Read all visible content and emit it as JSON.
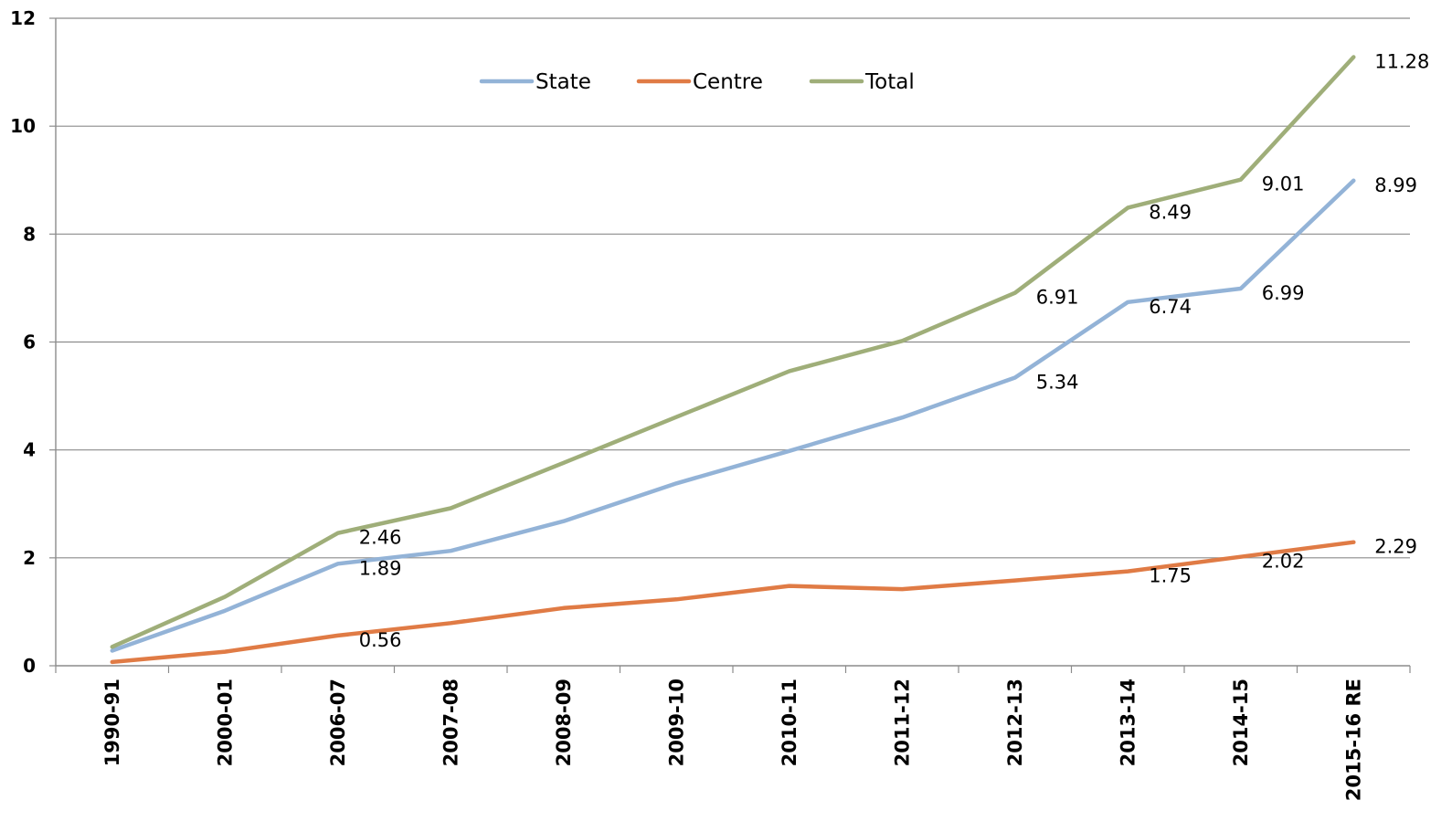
{
  "chart_data": {
    "type": "line",
    "title": "",
    "xlabel": "",
    "ylabel": "",
    "ylim": [
      0,
      12
    ],
    "yticks": [
      0,
      2,
      4,
      6,
      8,
      10,
      12
    ],
    "grid": true,
    "legend_position": "top-center",
    "categories": [
      "1990-91",
      "2000-01",
      "2006-07",
      "2007-08",
      "2008-09",
      "2009-10",
      "2010-11",
      "2011-12",
      "2012-13",
      "2013-14",
      "2014-15",
      "2015-16 RE"
    ],
    "series": [
      {
        "name": "State",
        "color": "#93b3d7",
        "values": [
          0.28,
          1.02,
          1.89,
          2.13,
          2.68,
          3.38,
          3.98,
          4.6,
          5.34,
          6.74,
          6.99,
          8.99
        ],
        "labels": [
          "",
          "",
          "1.89",
          "",
          "",
          "",
          "",
          "",
          "5.34",
          "6.74",
          "6.99",
          "8.99"
        ]
      },
      {
        "name": "Centre",
        "color": "#e07b45",
        "values": [
          0.07,
          0.26,
          0.56,
          0.79,
          1.07,
          1.23,
          1.48,
          1.42,
          1.58,
          1.75,
          2.02,
          2.29
        ],
        "labels": [
          "",
          "",
          "0.56",
          "",
          "",
          "",
          "",
          "",
          "",
          "1.75",
          "2.02",
          "2.29"
        ]
      },
      {
        "name": "Total",
        "color": "#9fae79",
        "values": [
          0.35,
          1.28,
          2.46,
          2.92,
          3.76,
          4.61,
          5.46,
          6.02,
          6.91,
          8.49,
          9.01,
          11.28
        ],
        "labels": [
          "",
          "",
          "2.46",
          "",
          "",
          "",
          "",
          "",
          "6.91",
          "8.49",
          "9.01",
          "11.28"
        ]
      }
    ]
  }
}
